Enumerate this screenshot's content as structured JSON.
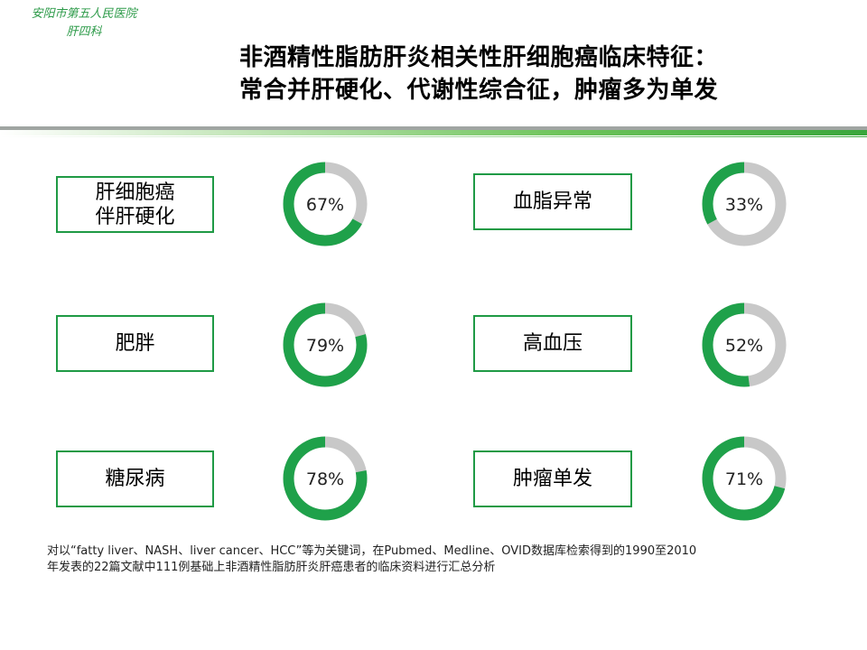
{
  "hospital": {
    "line1": "安阳市第五人民医院",
    "line2": "肝四科"
  },
  "title": {
    "line1": "非酒精性脂肪肝炎相关性肝细胞癌临床特征：",
    "line2": "常合并肝硬化、代谢性综合征，肿瘤多为单发"
  },
  "chart_data": [
    {
      "type": "pie",
      "label": "肝细胞癌伴肝硬化",
      "label_lines": [
        "肝细胞癌",
        "伴肝硬化"
      ],
      "value": 67,
      "display": "67%"
    },
    {
      "type": "pie",
      "label": "血脂异常",
      "label_lines": [
        "血脂异常"
      ],
      "value": 33,
      "display": "33%"
    },
    {
      "type": "pie",
      "label": "肥胖",
      "label_lines": [
        "肥胖"
      ],
      "value": 79,
      "display": "79%"
    },
    {
      "type": "pie",
      "label": "高血压",
      "label_lines": [
        "高血压"
      ],
      "value": 52,
      "display": "52%"
    },
    {
      "type": "pie",
      "label": "糖尿病",
      "label_lines": [
        "糖尿病"
      ],
      "value": 78,
      "display": "78%"
    },
    {
      "type": "pie",
      "label": "肿瘤单发",
      "label_lines": [
        "肿瘤单发"
      ],
      "value": 71,
      "display": "71%"
    }
  ],
  "colors": {
    "filled": "#1fa14a",
    "remainder": "#c8c8c8",
    "box_border": "#1f9a45",
    "brand_text": "#2e9b4a"
  },
  "footnote": {
    "line1": "对以“fatty liver、NASH、liver cancer、HCC”等为关键词，在Pubmed、Medline、OVID数据库检索得到的1990至2010",
    "line2": "年发表的22篇文献中111例基础上非酒精性脂肪肝炎肝癌患者的临床资料进行汇总分析"
  }
}
